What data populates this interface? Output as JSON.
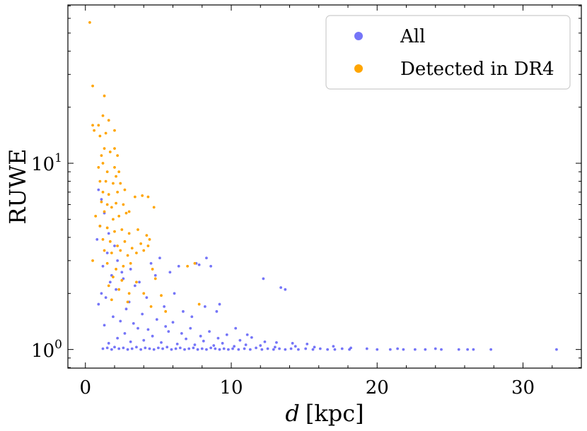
{
  "chart_data": {
    "type": "scatter",
    "xlabel_italic": "d",
    "xlabel_unit": "[kpc]",
    "ylabel": "RUWE",
    "xlim": [
      -1.2,
      34.0
    ],
    "ylim_log10": [
      -0.1,
      1.85
    ],
    "x_ticks": [
      0,
      10,
      20,
      30
    ],
    "x_tick_labels": [
      "0",
      "10",
      "20",
      "30"
    ],
    "y_ticks_major": [
      1,
      10
    ],
    "y_tick_labels": [
      {
        "base": "10",
        "exp": "0"
      },
      {
        "base": "10",
        "exp": "1"
      }
    ],
    "legend": {
      "placement": "upper right",
      "entries": [
        {
          "label": "All",
          "color": "#3b3bf5"
        },
        {
          "label": "Detected in DR4",
          "color": "#ffa500"
        }
      ]
    },
    "series": [
      {
        "name": "All",
        "color": "#3b3bf5",
        "opacity": 0.7,
        "points": [
          [
            1.2,
            1.01
          ],
          [
            1.5,
            1.02
          ],
          [
            1.8,
            1.0
          ],
          [
            2.0,
            1.03
          ],
          [
            2.3,
            1.01
          ],
          [
            2.6,
            1.02
          ],
          [
            2.9,
            1.0
          ],
          [
            3.2,
            1.01
          ],
          [
            3.5,
            1.03
          ],
          [
            3.8,
            1.0
          ],
          [
            4.1,
            1.02
          ],
          [
            4.4,
            1.01
          ],
          [
            4.7,
            1.0
          ],
          [
            5.0,
            1.02
          ],
          [
            5.3,
            1.01
          ],
          [
            5.6,
            1.03
          ],
          [
            5.9,
            1.0
          ],
          [
            6.2,
            1.01
          ],
          [
            6.5,
            1.02
          ],
          [
            6.8,
            1.0
          ],
          [
            7.1,
            1.01
          ],
          [
            7.4,
            1.02
          ],
          [
            7.7,
            1.0
          ],
          [
            8.0,
            1.01
          ],
          [
            8.3,
            1.0
          ],
          [
            8.6,
            1.02
          ],
          [
            8.9,
            1.01
          ],
          [
            9.2,
            1.0
          ],
          [
            9.5,
            1.01
          ],
          [
            9.8,
            1.0
          ],
          [
            10.1,
            1.01
          ],
          [
            10.5,
            1.0
          ],
          [
            10.9,
            1.01
          ],
          [
            11.3,
            1.0
          ],
          [
            11.7,
            1.02
          ],
          [
            12.1,
            1.0
          ],
          [
            12.5,
            1.01
          ],
          [
            12.9,
            1.0
          ],
          [
            13.3,
            1.01
          ],
          [
            13.7,
            1.0
          ],
          [
            14.1,
            1.01
          ],
          [
            14.6,
            1.0
          ],
          [
            15.1,
            1.01
          ],
          [
            15.6,
            1.0
          ],
          [
            16.1,
            1.01
          ],
          [
            16.6,
            1.0
          ],
          [
            17.1,
            1.0
          ],
          [
            17.6,
            1.01
          ],
          [
            18.1,
            1.0
          ],
          [
            19.3,
            1.01
          ],
          [
            20.0,
            1.0
          ],
          [
            20.9,
            1.0
          ],
          [
            21.4,
            1.01
          ],
          [
            21.8,
            1.0
          ],
          [
            22.6,
            1.0
          ],
          [
            23.3,
            1.0
          ],
          [
            24.0,
            1.01
          ],
          [
            24.4,
            1.0
          ],
          [
            25.6,
            1.0
          ],
          [
            26.2,
            1.0
          ],
          [
            26.6,
            1.0
          ],
          [
            27.8,
            1.0
          ],
          [
            32.3,
            1.0
          ],
          [
            1.6,
            1.08
          ],
          [
            2.2,
            1.15
          ],
          [
            2.7,
            1.22
          ],
          [
            3.1,
            1.1
          ],
          [
            3.6,
            1.3
          ],
          [
            4.0,
            1.12
          ],
          [
            4.6,
            1.18
          ],
          [
            5.2,
            1.09
          ],
          [
            5.7,
            1.25
          ],
          [
            6.3,
            1.07
          ],
          [
            6.9,
            1.14
          ],
          [
            7.5,
            1.06
          ],
          [
            8.1,
            1.11
          ],
          [
            8.8,
            1.05
          ],
          [
            9.4,
            1.08
          ],
          [
            10.2,
            1.04
          ],
          [
            11.0,
            1.06
          ],
          [
            12.0,
            1.05
          ],
          [
            13.0,
            1.03
          ],
          [
            14.4,
            1.04
          ],
          [
            15.7,
            1.03
          ],
          [
            17.0,
            1.04
          ],
          [
            18.2,
            1.02
          ],
          [
            1.3,
            1.35
          ],
          [
            1.9,
            1.5
          ],
          [
            2.4,
            1.42
          ],
          [
            2.8,
            1.65
          ],
          [
            3.3,
            1.38
          ],
          [
            3.9,
            1.55
          ],
          [
            4.3,
            1.28
          ],
          [
            4.9,
            1.45
          ],
          [
            5.5,
            1.33
          ],
          [
            6.0,
            1.4
          ],
          [
            6.6,
            1.22
          ],
          [
            7.2,
            1.3
          ],
          [
            7.9,
            1.18
          ],
          [
            8.5,
            1.25
          ],
          [
            9.1,
            1.15
          ],
          [
            9.7,
            1.2
          ],
          [
            10.6,
            1.12
          ],
          [
            11.4,
            1.16
          ],
          [
            12.3,
            1.1
          ],
          [
            13.1,
            1.09
          ],
          [
            14.2,
            1.08
          ],
          [
            15.2,
            1.07
          ],
          [
            0.9,
            1.75
          ],
          [
            1.1,
            2.0
          ],
          [
            1.4,
            1.9
          ],
          [
            1.7,
            2.3
          ],
          [
            2.1,
            2.1
          ],
          [
            2.5,
            2.6
          ],
          [
            3.0,
            1.8
          ],
          [
            3.4,
            2.2
          ],
          [
            4.2,
            1.9
          ],
          [
            4.8,
            2.5
          ],
          [
            5.4,
            1.7
          ],
          [
            6.1,
            2.0
          ],
          [
            6.7,
            1.6
          ],
          [
            7.3,
            1.5
          ],
          [
            8.2,
            1.7
          ],
          [
            9.0,
            1.6
          ],
          [
            1.2,
            2.8
          ],
          [
            1.5,
            3.3
          ],
          [
            1.8,
            2.5
          ],
          [
            2.2,
            3.0
          ],
          [
            2.6,
            2.4
          ],
          [
            3.1,
            2.7
          ],
          [
            3.7,
            2.3
          ],
          [
            4.5,
            2.9
          ],
          [
            5.1,
            3.1
          ],
          [
            5.8,
            2.6
          ],
          [
            6.4,
            2.8
          ],
          [
            7.6,
            2.9
          ],
          [
            8.3,
            3.1
          ],
          [
            8.6,
            2.8
          ],
          [
            9.2,
            1.75
          ],
          [
            0.8,
            3.9
          ],
          [
            1.0,
            4.6
          ],
          [
            1.3,
            5.4
          ],
          [
            1.6,
            4.2
          ],
          [
            2.0,
            3.6
          ],
          [
            1.1,
            6.4
          ],
          [
            0.9,
            7.2
          ],
          [
            12.2,
            2.4
          ],
          [
            13.4,
            2.15
          ],
          [
            13.7,
            2.1
          ],
          [
            7.8,
            2.85
          ],
          [
            10.3,
            1.3
          ],
          [
            11.1,
            1.2
          ]
        ]
      },
      {
        "name": "Detected in DR4",
        "color": "#ffa500",
        "opacity": 1,
        "points": [
          [
            0.3,
            57
          ],
          [
            0.5,
            26
          ],
          [
            1.3,
            23
          ],
          [
            0.5,
            16
          ],
          [
            0.6,
            15
          ],
          [
            0.9,
            16
          ],
          [
            1.2,
            18
          ],
          [
            1.6,
            17
          ],
          [
            1.0,
            14
          ],
          [
            1.4,
            14.5
          ],
          [
            2.0,
            15
          ],
          [
            1.1,
            11
          ],
          [
            1.3,
            12
          ],
          [
            1.7,
            11.5
          ],
          [
            2.0,
            12
          ],
          [
            2.2,
            11
          ],
          [
            0.9,
            9.5
          ],
          [
            1.2,
            10
          ],
          [
            1.5,
            9
          ],
          [
            2.0,
            9.5
          ],
          [
            2.3,
            9
          ],
          [
            1.0,
            8
          ],
          [
            1.4,
            8
          ],
          [
            1.9,
            7.8
          ],
          [
            2.1,
            8.5
          ],
          [
            2.4,
            7.8
          ],
          [
            1.2,
            7
          ],
          [
            1.6,
            6.8
          ],
          [
            2.2,
            7
          ],
          [
            2.7,
            7.2
          ],
          [
            1.1,
            6.2
          ],
          [
            1.5,
            6
          ],
          [
            1.8,
            5.8
          ],
          [
            2.1,
            6.1
          ],
          [
            2.6,
            6.0
          ],
          [
            3.0,
            5.5
          ],
          [
            0.7,
            5.2
          ],
          [
            1.3,
            5.5
          ],
          [
            1.9,
            5.0
          ],
          [
            2.3,
            5.2
          ],
          [
            2.8,
            5.4
          ],
          [
            3.4,
            6.6
          ],
          [
            3.9,
            6.7
          ],
          [
            4.3,
            6.6
          ],
          [
            1.0,
            4.6
          ],
          [
            1.5,
            4.5
          ],
          [
            2.0,
            4.3
          ],
          [
            2.5,
            4.4
          ],
          [
            3.0,
            4.2
          ],
          [
            3.6,
            4.4
          ],
          [
            4.2,
            4.1
          ],
          [
            4.7,
            5.8
          ],
          [
            1.2,
            3.9
          ],
          [
            1.7,
            3.8
          ],
          [
            2.2,
            3.6
          ],
          [
            2.7,
            3.8
          ],
          [
            3.2,
            3.5
          ],
          [
            3.8,
            3.7
          ],
          [
            4.4,
            3.9
          ],
          [
            1.3,
            3.4
          ],
          [
            1.8,
            3.3
          ],
          [
            2.4,
            3.4
          ],
          [
            2.9,
            3.2
          ],
          [
            3.5,
            3.3
          ],
          [
            4.0,
            3.4
          ],
          [
            4.3,
            3.6
          ],
          [
            0.5,
            3.0
          ],
          [
            1.5,
            2.9
          ],
          [
            2.1,
            2.7
          ],
          [
            2.6,
            2.8
          ],
          [
            3.1,
            2.9
          ],
          [
            4.6,
            2.7
          ],
          [
            7.0,
            2.8
          ],
          [
            7.5,
            2.9
          ],
          [
            1.9,
            2.45
          ],
          [
            2.5,
            2.35
          ],
          [
            3.5,
            2.3
          ],
          [
            4.8,
            2.4
          ],
          [
            1.6,
            2.2
          ],
          [
            2.3,
            2.1
          ],
          [
            3.0,
            2.0
          ],
          [
            4.0,
            2.0
          ],
          [
            5.2,
            1.95
          ],
          [
            1.8,
            1.85
          ],
          [
            2.9,
            1.8
          ],
          [
            4.5,
            1.7
          ],
          [
            5.5,
            1.6
          ],
          [
            7.8,
            1.75
          ]
        ]
      }
    ]
  }
}
